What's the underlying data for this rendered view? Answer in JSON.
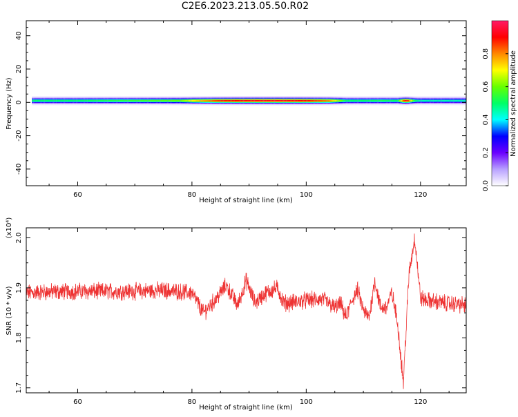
{
  "page": {
    "title": "C2E6.2023.213.05.50.R02"
  },
  "colorbar": {
    "label": "Normalized spectral amplitude",
    "ticks": [
      0.0,
      0.2,
      0.4,
      0.6,
      0.8
    ],
    "tick_labels": [
      "0.0",
      "0.2",
      "0.4",
      "0.6",
      "0.8"
    ],
    "colormap": [
      "#ffffff",
      "#b8a0ff",
      "#6a00ff",
      "#0000ff",
      "#00ffff",
      "#00ff66",
      "#66ff00",
      "#ffff00",
      "#ff8800",
      "#ff0000",
      "#ff1a66"
    ]
  },
  "chart_data": [
    {
      "type": "heatmap",
      "xlabel": "Height of straight line (km)",
      "ylabel": "Frequency (Hz)",
      "xlim": [
        51,
        128
      ],
      "ylim": [
        -50,
        49
      ],
      "xticks": [
        60,
        80,
        100,
        120
      ],
      "xtick_labels": [
        "60",
        "80",
        "100",
        "120"
      ],
      "yticks": [
        -40,
        -20,
        0,
        20,
        40
      ],
      "ytick_labels": [
        "-40",
        "-20",
        "0",
        "20",
        "40"
      ],
      "band_center_hz": 1,
      "amplitude_profile": {
        "x": [
          52,
          60,
          70,
          78,
          80,
          85,
          90,
          95,
          100,
          104,
          106,
          107,
          110,
          113,
          116,
          117.5,
          119,
          120,
          125,
          128
        ],
        "peak": [
          0.5,
          0.5,
          0.55,
          0.6,
          0.7,
          0.88,
          0.92,
          0.93,
          0.9,
          0.8,
          0.6,
          0.5,
          0.5,
          0.52,
          0.5,
          0.97,
          0.5,
          0.45,
          0.45,
          0.45
        ]
      }
    },
    {
      "type": "line",
      "xlabel": "Height of straight line (km)",
      "ylabel": "SNR (10 * v/v)",
      "multiplier_label": "(x10⁴)",
      "xlim": [
        51,
        128
      ],
      "ylim": [
        1.69,
        2.02
      ],
      "xticks": [
        60,
        80,
        100,
        120
      ],
      "xtick_labels": [
        "60",
        "80",
        "100",
        "120"
      ],
      "yticks": [
        1.7,
        1.8,
        1.9,
        2.0
      ],
      "ytick_labels": [
        "1.7",
        "1.8",
        "1.9",
        "2.0"
      ],
      "color": "#ee3333",
      "series": [
        {
          "x": [
            51,
            55,
            60,
            65,
            70,
            75,
            80,
            82,
            84,
            86,
            88,
            89.5,
            91,
            93,
            95,
            96,
            97,
            100,
            103,
            105,
            106,
            107,
            108,
            109,
            110,
            111,
            112,
            113,
            114,
            115,
            116,
            117,
            118,
            119,
            120,
            121,
            124,
            128
          ],
          "y": [
            1.89,
            1.892,
            1.893,
            1.893,
            1.893,
            1.895,
            1.89,
            1.85,
            1.875,
            1.905,
            1.865,
            1.915,
            1.87,
            1.89,
            1.9,
            1.87,
            1.87,
            1.875,
            1.877,
            1.86,
            1.868,
            1.84,
            1.875,
            1.895,
            1.855,
            1.84,
            1.915,
            1.86,
            1.86,
            1.89,
            1.83,
            1.71,
            1.93,
            2.0,
            1.88,
            1.875,
            1.87,
            1.865
          ]
        }
      ]
    }
  ]
}
